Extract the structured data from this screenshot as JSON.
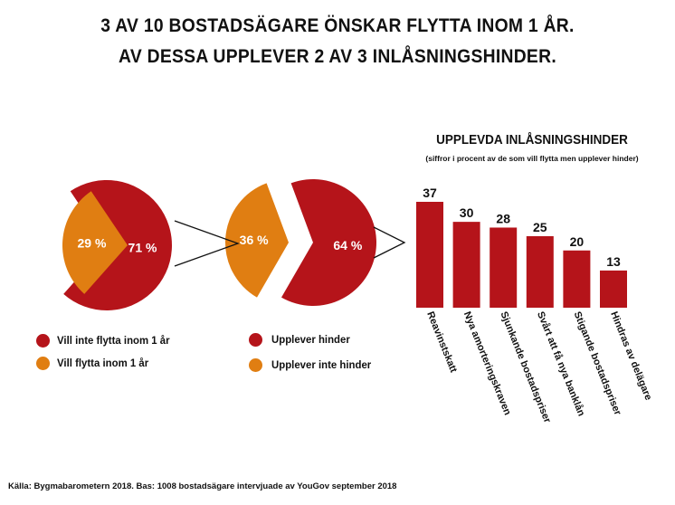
{
  "headline": {
    "line1": "3 AV 10 BOSTADSÄGARE ÖNSKAR FLYTTA INOM 1 ÅR.",
    "line2": "AV DESSA UPPLEVER 2 AV 3 INLÅSNINGSHINDER."
  },
  "colors": {
    "red": "#b5141a",
    "orange": "#e07e12",
    "text": "#111111"
  },
  "pies": [
    {
      "slices": [
        {
          "label": "71 %",
          "value": 71,
          "color": "#b5141a",
          "legend": "Vill inte flytta inom 1 år"
        },
        {
          "label": "29 %",
          "value": 29,
          "color": "#e07e12",
          "legend": "Vill flytta inom 1 år"
        }
      ]
    },
    {
      "slices": [
        {
          "label": "36 %",
          "value": 36,
          "color": "#e07e12",
          "legend": "Upplever inte hinder"
        },
        {
          "label": "64 %",
          "value": 64,
          "color": "#b5141a",
          "legend": "Upplever hinder"
        }
      ]
    }
  ],
  "legend": {
    "left": [
      "Vill inte flytta inom 1 år",
      "Vill flytta inom 1 år"
    ],
    "right": [
      "Upplever hinder",
      "Upplever inte hinder"
    ]
  },
  "chart_data": {
    "type": "bar",
    "title": "UPPLEVDA INLÅSNINGSHINDER",
    "subtitle": "(siffror i procent av de som vill flytta men upplever hinder)",
    "categories": [
      "Reavinstskatt",
      "Nya amorteringskraven",
      "Sjunkande bostadspriser",
      "Svårt att få nya banklån",
      "Stigande bostadspriser",
      "Hindras av delägare"
    ],
    "values": [
      37,
      30,
      28,
      25,
      20,
      13
    ],
    "color": "#b5141a",
    "ylim": [
      0,
      37
    ],
    "grid": false
  },
  "source": "Källa: Bygmabarometern 2018. Bas: 1008 bostadsägare intervjuade av YouGov september 2018"
}
